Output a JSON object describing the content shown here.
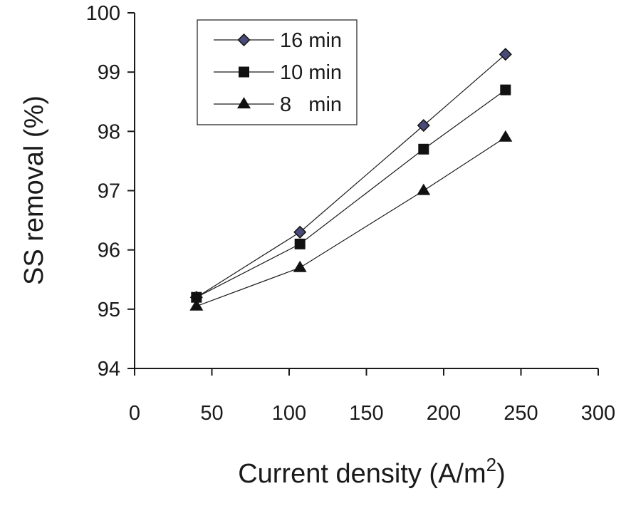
{
  "chart_data": {
    "type": "line",
    "xlabel": "Current density (A/m",
    "xlabel_superscript": "2",
    "xlabel_suffix": ")",
    "ylabel": "SS removal (%)",
    "xlim": [
      0,
      300
    ],
    "ylim": [
      94,
      100
    ],
    "x_ticks": [
      0,
      50,
      100,
      150,
      200,
      250,
      300
    ],
    "y_ticks": [
      94,
      95,
      96,
      97,
      98,
      99,
      100
    ],
    "x_tick_labels": [
      "0",
      "50",
      "100",
      "150",
      "200",
      "250",
      "300"
    ],
    "y_tick_labels": [
      "94",
      "95",
      "96",
      "97",
      "98",
      "99",
      "100"
    ],
    "grid": false,
    "legend_position": "top-left",
    "series": [
      {
        "name": "16 min",
        "marker": "diamond",
        "marker_color": "#4a4a78",
        "x": [
          40,
          107,
          187,
          240
        ],
        "y": [
          95.2,
          96.3,
          98.1,
          99.3
        ]
      },
      {
        "name": "10 min",
        "marker": "square",
        "marker_color": "#111111",
        "x": [
          40,
          107,
          187,
          240
        ],
        "y": [
          95.2,
          96.1,
          97.7,
          98.7
        ]
      },
      {
        "name": "8   min",
        "marker": "triangle",
        "marker_color": "#111111",
        "x": [
          40,
          107,
          187,
          240
        ],
        "y": [
          95.05,
          95.7,
          97.0,
          97.9
        ]
      }
    ]
  }
}
